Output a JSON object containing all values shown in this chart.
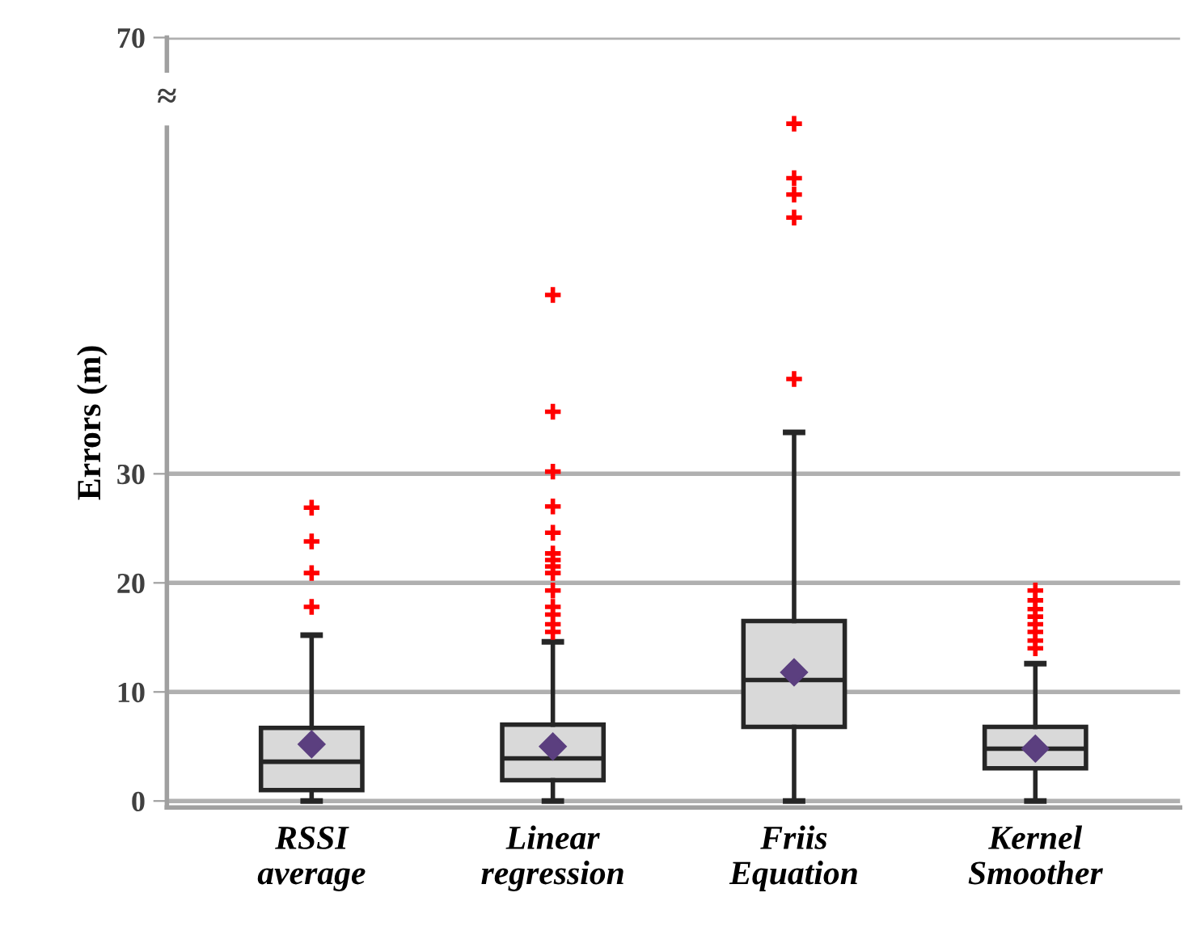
{
  "chart_data": {
    "type": "box",
    "ylabel": "Errors (m)",
    "categories": [
      "RSSI\naverage",
      "Linear\nregression",
      "Friis\nEquation",
      "Kernel\nSmoother"
    ],
    "boxes": [
      {
        "low": 0,
        "q1": 1.0,
        "median": 3.6,
        "q3": 6.7,
        "high": 15.2,
        "mean": 5.2,
        "outliers": [
          26.9,
          23.8,
          20.9,
          17.8
        ]
      },
      {
        "low": 0,
        "q1": 1.9,
        "median": 3.9,
        "q3": 7.0,
        "high": 14.6,
        "mean": 5.0,
        "outliers": [
          46.4,
          35.7,
          30.2,
          27.0,
          24.6,
          22.7,
          22.1,
          21.5,
          20.9,
          19.3,
          17.8,
          17.1,
          16.2,
          15.5
        ]
      },
      {
        "low": 0,
        "q1": 6.8,
        "median": 11.1,
        "q3": 16.5,
        "high": 33.8,
        "mean": 11.8,
        "outliers": [
          62.1,
          57.1,
          55.6,
          53.5,
          38.7
        ]
      },
      {
        "low": 0,
        "q1": 3.0,
        "median": 4.8,
        "q3": 6.8,
        "high": 12.6,
        "mean": 4.8,
        "outliers": [
          19.3,
          18.4,
          17.6,
          16.9,
          16.2,
          15.5,
          14.7,
          14.0
        ]
      }
    ],
    "color": "#d9d9d9",
    "ylim": [
      -0.6,
      70
    ],
    "yticks": [
      0,
      10,
      20,
      30,
      70
    ],
    "grid": "y",
    "annotations": [
      "≈"
    ]
  }
}
